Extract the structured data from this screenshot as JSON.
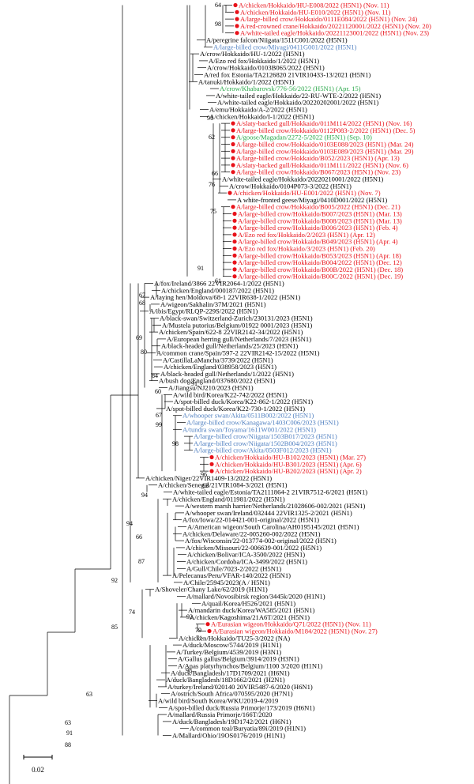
{
  "colors": {
    "branch": "#000000",
    "label_default": "#000000",
    "label_red": "#e8121a",
    "label_blue": "#4f7fc0",
    "label_green": "#2aa84a",
    "marker_red": "#e8121a"
  },
  "scale_bar": {
    "label": "0.02"
  },
  "taxa": [
    {
      "label": "A/chicken/Hokkaido/HU-E008/2022 (H5N1) (Nov. 11)",
      "color": "red",
      "dot": true
    },
    {
      "label": "A/chicken/Hokkaido/HU-E010/2022 (H5N1) (Nov. 11)",
      "color": "red",
      "dot": true
    },
    {
      "label": "A/large-billed crow/Hokkaido/0111E084/2022 (H5N1) (Nov. 24)",
      "color": "red",
      "dot": true
    },
    {
      "label": "A/red-crowned crane/Hokkaido/20221120001/2022 (H5N1) (Nov. 20)",
      "color": "red",
      "dot": true
    },
    {
      "label": "A/white-tailed eagle/Hokkaido/20221123001/2022 (H5N1) (Nov. 23)",
      "color": "red",
      "dot": true
    },
    {
      "label": "A/peregrine falcon/Niigata/1511C001/2022 (H5N1)",
      "color": "black",
      "dot": false
    },
    {
      "label": "A/large-billed crow/Miyagi/0411G001/2022 (H5N1)",
      "color": "blue",
      "dot": false
    },
    {
      "label": "A/crow/Hokkaido/HU-1/2022 (H5N1)",
      "color": "black",
      "dot": false
    },
    {
      "label": "A/Ezo red fox/Hokkaido/1/2022 (H5N1)",
      "color": "black",
      "dot": false
    },
    {
      "label": "A/crow/Hokkaido/0103B065/2022 (H5N1)",
      "color": "black",
      "dot": false
    },
    {
      "label": "A/red fox Estonia/TA2126820 21VIR10433-13/2021 (H5N1)",
      "color": "black",
      "dot": false
    },
    {
      "label": "A/tanuki/Hokkaido/1/2022 (H5N1)",
      "color": "black",
      "dot": false
    },
    {
      "label": "A/crow/Khabarovsk/776-56/2022 (H5N1) (Apr. 15)",
      "color": "green",
      "dot": false
    },
    {
      "label": "A/white-tailed eagle/Hokkaido/22-RU-WTE-2/2022 (H5N1)",
      "color": "black",
      "dot": false
    },
    {
      "label": "A/white-tailed eagle/Hokkaido/20220202001/2022 (H5N1)",
      "color": "black",
      "dot": false
    },
    {
      "label": "A/emu/Hokkaido/A-2/2022 (H5N1)",
      "color": "black",
      "dot": false
    },
    {
      "label": "A/chicken/Hokkaido/I-1/2022 (H5N1)",
      "color": "black",
      "dot": false
    },
    {
      "label": "A/slaty-backed gull/Hokkaido/011M114/2022 (H5N1) (Nov. 16)",
      "color": "red",
      "dot": true
    },
    {
      "label": "A/large-billed crow/Hokkaido/0112P083-2/2022 (H5N1) (Dec. 5)",
      "color": "red",
      "dot": true
    },
    {
      "label": "A/goose/Magadan/2272-5/2022 (H5N1) (Sep. 10)",
      "color": "green",
      "dot": true
    },
    {
      "label": "A/large-billed crow/Hokkaido/0103E088/2023 (H5N1) (Mar. 24)",
      "color": "red",
      "dot": true
    },
    {
      "label": "A/large-billed crow/Hokkaido/0103E089/2023 (H5N1) (Mar. 29)",
      "color": "red",
      "dot": true
    },
    {
      "label": "A/large-billed crow/Hokkaido/B052/2023 (H5N1) (Apr. 13)",
      "color": "red",
      "dot": true
    },
    {
      "label": "A/slaty-backed gull/Hokkaido/011M111/2022 (H5N1) (Nov. 6)",
      "color": "red",
      "dot": true
    },
    {
      "label": "A/large-billed crow/Hokkaido/B067/2023 (H5N1) (Nov. 23)",
      "color": "red",
      "dot": true
    },
    {
      "label": "A/white-tailed eagle/Hokkaido/20220210001/2022 (H5N1)",
      "color": "black",
      "dot": false
    },
    {
      "label": "A/crow/Hokkaido/0104P073-3/2022 (H5N1)",
      "color": "black",
      "dot": false
    },
    {
      "label": "A/chicken/Hokkaido/HU-E001/2022 (H5N1) (Nov. 7)",
      "color": "red",
      "dot": true
    },
    {
      "label": "A white-fronted geese/Miyagi/0410D001/2022 (H5N1)",
      "color": "black",
      "dot": false
    },
    {
      "label": "A/large-billed crow/Hokkaido/B005/2022 (H5N1) (Dec. 21)",
      "color": "red",
      "dot": true
    },
    {
      "label": "A/large-billed crow/Hokkaido/B007/2023 (H5N1) (Mar. 13)",
      "color": "red",
      "dot": true
    },
    {
      "label": "A/large-billed crow/Hokkaido/B008/2023 (H5N1) (Mar. 13)",
      "color": "red",
      "dot": true
    },
    {
      "label": "A/large-billed crow/Hokkaido/B006/2023 (H5N1) (Feb. 4)",
      "color": "red",
      "dot": true
    },
    {
      "label": "A/Ezo red fox/Hokkaido/2/2023 (H5N1) (Apr. 12)",
      "color": "red",
      "dot": true
    },
    {
      "label": "A/large-billed crow/Hokkaido/B049/2023 (H5N1) (Apr. 4)",
      "color": "red",
      "dot": true
    },
    {
      "label": "A/Ezo red fox/Hokkaido/3/2023 (H5N1) (Feb. 20)",
      "color": "red",
      "dot": true
    },
    {
      "label": "A/large-billed crow/Hokkaido/B053/2023 (H5N1) (Apr. 18)",
      "color": "red",
      "dot": true
    },
    {
      "label": "A/large-billed crow/Hokkaido/B004/2022 (H5N1) (Dec. 12)",
      "color": "red",
      "dot": true
    },
    {
      "label": "A/large-billed crow/Hokkaido/B00B/2022 (H5N1) (Dec. 18)",
      "color": "red",
      "dot": true
    },
    {
      "label": "A/large-billed crow/Hokkaido/B00C/2022 (H5N1) (Dec. 19)",
      "color": "red",
      "dot": true
    },
    {
      "label": "A/fox/Ireland/3866 22VIR2064-1/2022 (H5N1)",
      "color": "black",
      "dot": false
    },
    {
      "label": "A/chicken/England/000187/2022 (H5N1)",
      "color": "black",
      "dot": false
    },
    {
      "label": "A/laying hen/Moldova/68-1 22VIR638-1/2022 (H5N1)",
      "color": "black",
      "dot": false
    },
    {
      "label": "A/wigeon/Sakhalin/37M/2021 (H5N1)",
      "color": "black",
      "dot": false
    },
    {
      "label": "A/ibis/Egypt/RLQP-229S/2022 (H5N1)",
      "color": "black",
      "dot": false
    },
    {
      "label": "A/black-swan/Switzerland-Zurich/230131/2023 (H5N1)",
      "color": "black",
      "dot": false
    },
    {
      "label": "A/Mustela putorius/Belgium/01922 0001/2023 (H5N1)",
      "color": "black",
      "dot": false
    },
    {
      "label": "A/chicken/Spain/622-8 22VIR2142-34/2022 (H5N1)",
      "color": "black",
      "dot": false
    },
    {
      "label": "A/European herring gull/Netherlands/7/2023 (H5N1)",
      "color": "black",
      "dot": false
    },
    {
      "label": "A/black-headed gull/Netherlands/25/2023 (H5N1)",
      "color": "black",
      "dot": false
    },
    {
      "label": "A/common crane/Spain/597-2 22VIR2142-15/2022 (H5N1)",
      "color": "black",
      "dot": false
    },
    {
      "label": "A/CastillaLaMancha/3739/2022 (H5N1)",
      "color": "black",
      "dot": false
    },
    {
      "label": "A/chicken/England/038958/2023 (H5N1)",
      "color": "black",
      "dot": false
    },
    {
      "label": "A/black-headed gull/Netherlands/1/2022 (H5N1)",
      "color": "black",
      "dot": false
    },
    {
      "label": "A/bush dog/England/037680/2022 (H5N1)",
      "color": "black",
      "dot": false
    },
    {
      "label": "A/Jiangsu/NJ210/2023 (H5N1)",
      "color": "black",
      "dot": false
    },
    {
      "label": "A/wild bird/Korea/K22-742/2022 (H5N1)",
      "color": "black",
      "dot": false
    },
    {
      "label": "A/spot-billed duck/Korea/K22-862-1/2022 (H5N1)",
      "color": "black",
      "dot": false
    },
    {
      "label": "A/spot-billed duck/Korea/K22-730-1/2022 (H5N1)",
      "color": "black",
      "dot": false
    },
    {
      "label": "A/whooper swan/Akita/0511B002/2022 (H5N1)",
      "color": "blue",
      "dot": false
    },
    {
      "label": "A/large-billed crow/Kanagawa/1403C006/2023 (H5N1)",
      "color": "blue",
      "dot": false
    },
    {
      "label": "A/tundra swan/Toyama/1611W001/2022 (H5N1)",
      "color": "blue",
      "dot": false
    },
    {
      "label": "A/large-billed crow/Niigata/1503B017/2023 (H5N1)",
      "color": "blue",
      "dot": false
    },
    {
      "label": "A/large-billed crow/Niigata/1502B004/2023 (H5N1)",
      "color": "blue",
      "dot": false
    },
    {
      "label": "A/large-billed crow/Akita/0503F012/2023 (H5N1)",
      "color": "blue",
      "dot": false
    },
    {
      "label": "A/chicken/Hokkaido/HU-B102/2023 (H5N1) (Mar. 27)",
      "color": "red",
      "dot": true
    },
    {
      "label": "A/chicken/Hokkaido/HU-B301/2023 (H5N1) (Apr. 6)",
      "color": "red",
      "dot": true
    },
    {
      "label": "A/chicken/Hokkaido/HU-B202/2023 (H5N1) (Apr. 2)",
      "color": "red",
      "dot": true
    },
    {
      "label": "A/chicken/Niger/22VIR1409-13/2022 (H5N1)",
      "color": "black",
      "dot": false
    },
    {
      "label": "A/chicken/Senegal/21VIR1084-3/2021 (H5N1)",
      "color": "black",
      "dot": false
    },
    {
      "label": "A/white-tailed eagle/Estonia/TA2111864-2 21VIR7512-6/2021 (H5N1)",
      "color": "black",
      "dot": false
    },
    {
      "label": "A/chicken/England/011981/2022 (H5N1)",
      "color": "black",
      "dot": false
    },
    {
      "label": "A/western marsh harrier/Netherlands/21028606-002/2021 (H5N1)",
      "color": "black",
      "dot": false
    },
    {
      "label": "A/whooper swan/Ireland/032444 22VIR1325-2/2021 (H5N1)",
      "color": "black",
      "dot": false
    },
    {
      "label": "A/fox/Iowa/22-014421-001-original/2022 (H5N1)",
      "color": "black",
      "dot": false
    },
    {
      "label": "A/American wigeon/South Carolina/AH0195145/2021 (H5N1)",
      "color": "black",
      "dot": false
    },
    {
      "label": "A/chicken/Delaware/22-005260-002/2022 (H5N1)",
      "color": "black",
      "dot": false
    },
    {
      "label": "A/fox/Wisconsin/22-013774-002-original/2022 (H5N1)",
      "color": "black",
      "dot": false
    },
    {
      "label": "A/chicken/Missouri/22-006639-001/2022 (H5N1)",
      "color": "black",
      "dot": false
    },
    {
      "label": "A/chicken/Bolivar/ICA-3500/2022 (H5N1)",
      "color": "black",
      "dot": false
    },
    {
      "label": "A/chicken/Cordoba/ICA-3499/2022 (H5N1)",
      "color": "black",
      "dot": false
    },
    {
      "label": "A/Gull/Chile/7023-2/2022 (H5N1)",
      "color": "black",
      "dot": false
    },
    {
      "label": "A/Pelecanus/Peru/VFAR-140/2022 (H5N1)",
      "color": "black",
      "dot": false
    },
    {
      "label": "A/Chile/25945/2023(A / H5N1)",
      "color": "black",
      "dot": false
    },
    {
      "label": "A/Shoveler/Chany Lake/62/2019 (H1N1)",
      "color": "black",
      "dot": false
    },
    {
      "label": "A/mallard/Novosibirsk region/3445k/2020 (H1N1)",
      "color": "black",
      "dot": false
    },
    {
      "label": "A/quail/Korea/H526/2021 (H5N1)",
      "color": "black",
      "dot": false
    },
    {
      "label": "A/mandarin duck/Korea/WA585/2021 (H5N1)",
      "color": "black",
      "dot": false
    },
    {
      "label": "A/chicken/Kagoshima/21A6T/2021 (H5N1)",
      "color": "black",
      "dot": false
    },
    {
      "label": "A/Eurasian wigeon/Hokkaido/Q71/2022 (H5N1) (Nov. 11)",
      "color": "red",
      "dot": true
    },
    {
      "label": "A/Eurasian wigeon/Hokkaido/M184/2022 (H5N1) (Nov. 27)",
      "color": "red",
      "dot": true
    },
    {
      "label": "A/chicken/Hokkaido/TU25-3/2022 (NA)",
      "color": "black",
      "dot": false
    },
    {
      "label": "A/duck/Moscow/5744/2019 (H1N1)",
      "color": "black",
      "dot": false
    },
    {
      "label": "A/Turkey/Belgium/4539/2019 (H3N1)",
      "color": "black",
      "dot": false
    },
    {
      "label": "A/Gallus gallus/Belgium/3914/2019 (H3N1)",
      "color": "black",
      "dot": false
    },
    {
      "label": "A/Anas platyrhynchos/Belgium/1100 3/2020 (H1N1)",
      "color": "black",
      "dot": false
    },
    {
      "label": "A/duck/Bangladesh/17D1709/2021 (H6N1)",
      "color": "black",
      "dot": false
    },
    {
      "label": "A/duck/Bangladesh/18D1662/2021 (H2N1)",
      "color": "black",
      "dot": false
    },
    {
      "label": "A/turkey/Ireland/020140 20VIR5487-6/2020 (H6N1)",
      "color": "black",
      "dot": false
    },
    {
      "label": "A/ostrich/South Africa/070595/2020 (H7N1)",
      "color": "black",
      "dot": false
    },
    {
      "label": "A/wild bird/South Korea/WKU2019-4/2019",
      "color": "black",
      "dot": false
    },
    {
      "label": "A/spot-billed duck/Russia Primorje/173/2019 (H6N1)",
      "color": "black",
      "dot": false
    },
    {
      "label": "A/mallard/Russia Primorje/166T/2020",
      "color": "black",
      "dot": false
    },
    {
      "label": "A/duck/Bangladesh/19D1742/2021 (H6N1)",
      "color": "black",
      "dot": false
    },
    {
      "label": "A/common teal/Buryatia/89i/2019 (H1N1)",
      "color": "black",
      "dot": false
    },
    {
      "label": "A/Mallard/Ohio/19OS0176/2019 (H1N1)",
      "color": "black",
      "dot": false
    }
  ],
  "support_labels": [
    "64",
    "98",
    "91",
    "62",
    "66",
    "76",
    "75",
    "61",
    "91",
    "67",
    "68",
    "69",
    "80",
    "84",
    "60",
    "91",
    "67",
    "99",
    "98",
    "96",
    "63",
    "94",
    "94",
    "66",
    "87",
    "92",
    "74",
    "92",
    "85",
    "79",
    "71",
    "98",
    "63",
    "63",
    "91",
    "88"
  ]
}
